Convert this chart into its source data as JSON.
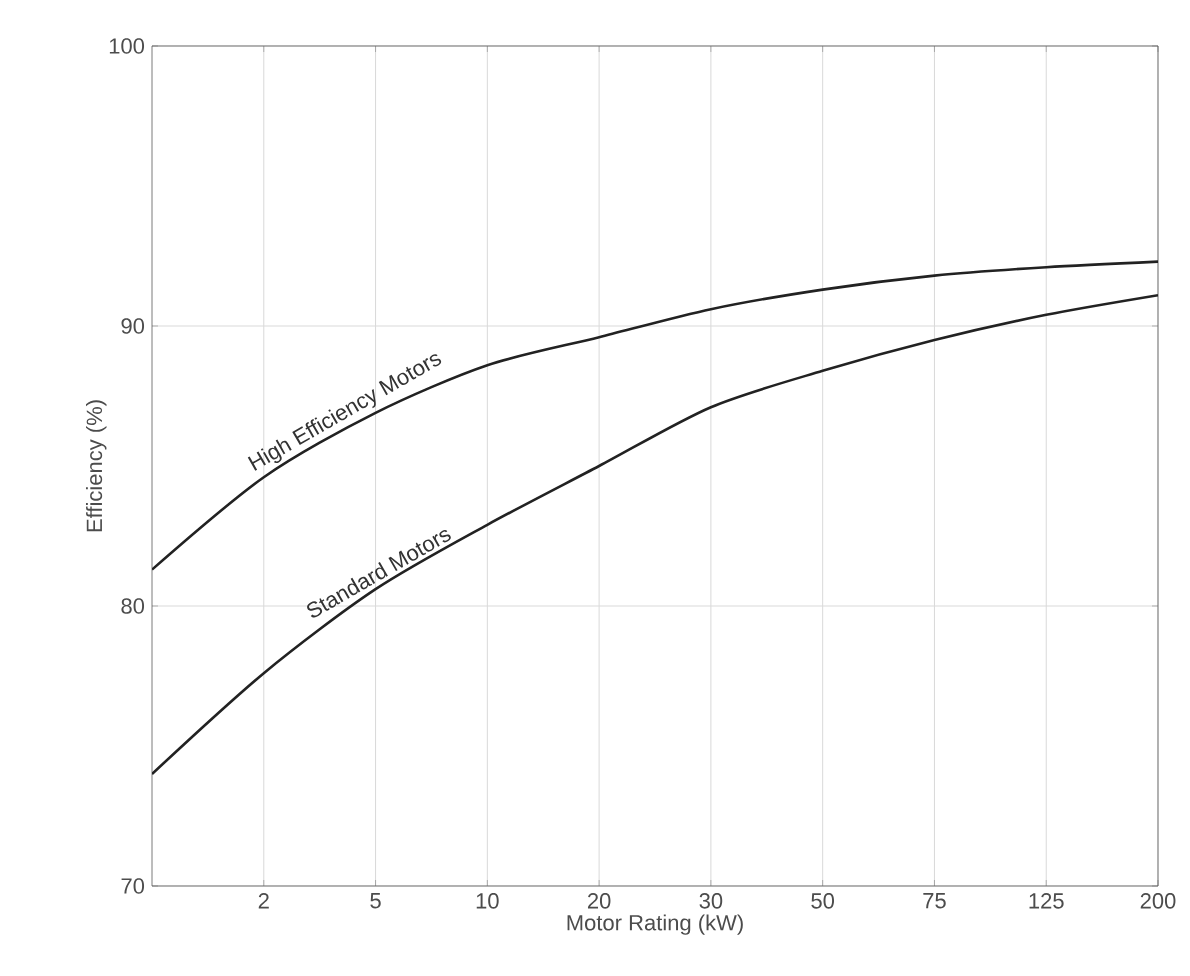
{
  "chart_data": {
    "type": "line",
    "xlabel": "Motor Rating (kW)",
    "ylabel": "Efficiency (%)",
    "categories": [
      null,
      "2",
      "5",
      "10",
      "20",
      "30",
      "50",
      "75",
      "125",
      "200"
    ],
    "series": [
      {
        "name": "High Efficiency Motors",
        "color": "#222222",
        "values": [
          81.3,
          84.6,
          86.9,
          88.6,
          89.6,
          90.6,
          91.3,
          91.8,
          92.1,
          92.3
        ]
      },
      {
        "name": "Standard Motors",
        "color": "#222222",
        "values": [
          74.0,
          77.6,
          80.6,
          82.9,
          85.0,
          87.1,
          88.4,
          89.5,
          90.4,
          91.1
        ]
      }
    ],
    "ylim": [
      70,
      100
    ],
    "yticks": [
      70,
      80,
      90,
      100
    ],
    "grid": true,
    "marker": "none",
    "line_style": "solid"
  }
}
